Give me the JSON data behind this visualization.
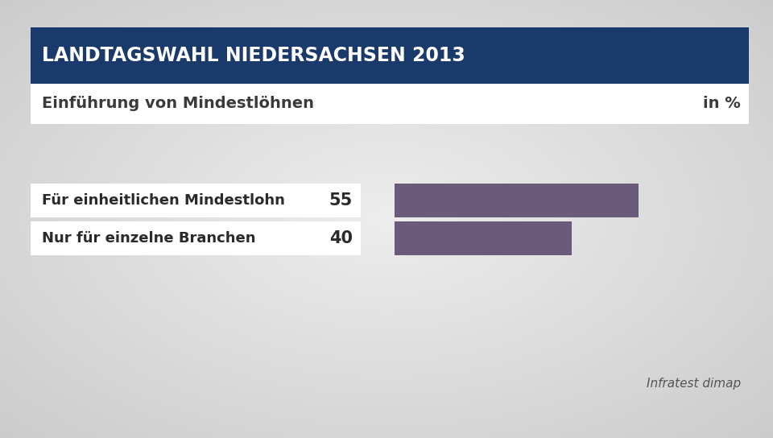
{
  "title": "LANDTAGSWAHL NIEDERSACHSEN 2013",
  "subtitle": "Einführung von Mindestlöhnen",
  "subtitle_right": "in %",
  "source": "Infratest dimap",
  "categories": [
    "Für einheitlichen Mindestlohn",
    "Nur für einzelne Branchen"
  ],
  "values": [
    55,
    40
  ],
  "bar_color": "#6b5b7a",
  "title_bg_color": "#1a3a6b",
  "title_text_color": "#ffffff",
  "subtitle_bg_color": "#ffffff",
  "subtitle_text_color": "#333333",
  "bg_outer_color": "#c2c2c2",
  "bg_inner_left_color": "#f0f0f0",
  "bg_inner_right_color": "#d0d0d0",
  "label_bg_color": "#ffffff",
  "title_fontsize": 17,
  "subtitle_fontsize": 14,
  "label_fontsize": 13,
  "value_fontsize": 15,
  "source_fontsize": 11,
  "bar_max_display": 70
}
